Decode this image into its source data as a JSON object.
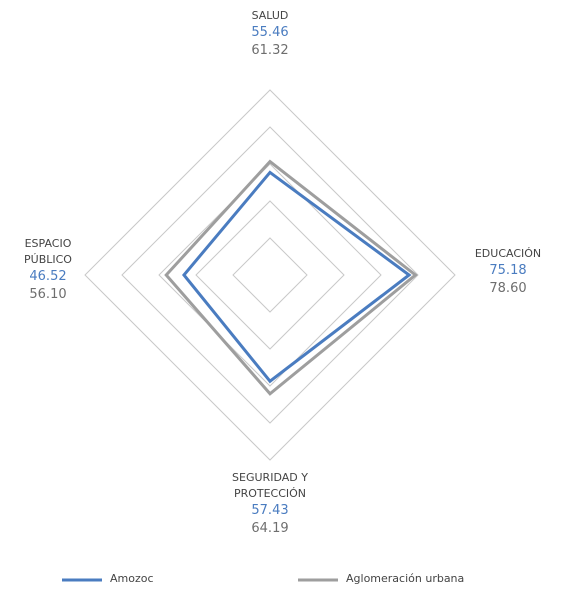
{
  "chart_data": {
    "type": "radar",
    "categories": [
      "SALUD",
      "EDUCACIÓN",
      "SEGURIDAD Y PROTECCIÓN",
      "ESPACIO PÚBLICO"
    ],
    "series": [
      {
        "name": "Amozoc",
        "color": "#4a7cc0",
        "values": [
          55.46,
          75.18,
          57.43,
          46.52
        ],
        "value_labels": [
          "55.46",
          "75.18",
          "57.43",
          "46.52"
        ]
      },
      {
        "name": "Aglomeración urbana",
        "color": "#9e9e9e",
        "values": [
          61.32,
          78.6,
          64.19,
          56.1
        ],
        "value_labels": [
          "61.32",
          "78.60",
          "64.19",
          "56.10"
        ]
      }
    ],
    "ylim": [
      0,
      100
    ],
    "yticks": [
      20,
      40,
      60,
      80,
      100
    ],
    "grid": true
  }
}
